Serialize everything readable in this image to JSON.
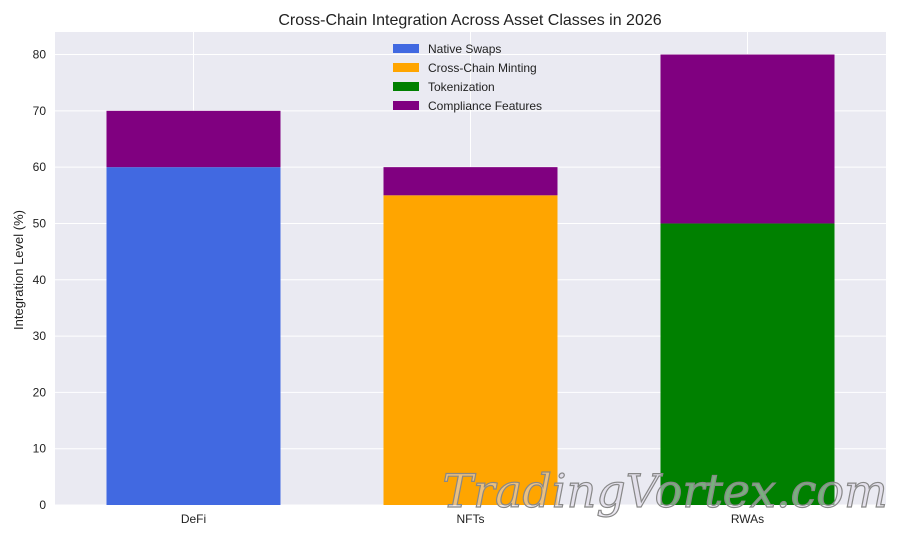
{
  "chart_data": {
    "type": "bar",
    "stacked": true,
    "title": "Cross-Chain Integration Across Asset Classes in 2026",
    "xlabel": "",
    "ylabel": "Integration Level (%)",
    "ylim": [
      0,
      84
    ],
    "yticks": [
      0,
      10,
      20,
      30,
      40,
      50,
      60,
      70,
      80
    ],
    "grid": true,
    "legend_position": "upper center",
    "categories": [
      "DeFi",
      "NFTs",
      "RWAs"
    ],
    "series": [
      {
        "name": "Native Swaps",
        "color": "#4169E1",
        "values": [
          60,
          0,
          0
        ]
      },
      {
        "name": "Cross-Chain Minting",
        "color": "#FFA500",
        "values": [
          0,
          55,
          0
        ]
      },
      {
        "name": "Tokenization",
        "color": "#008000",
        "values": [
          0,
          0,
          50
        ]
      },
      {
        "name": "Compliance Features",
        "color": "#800080",
        "values": [
          10,
          5,
          30
        ]
      }
    ]
  },
  "watermark": "TradingVortex.com"
}
